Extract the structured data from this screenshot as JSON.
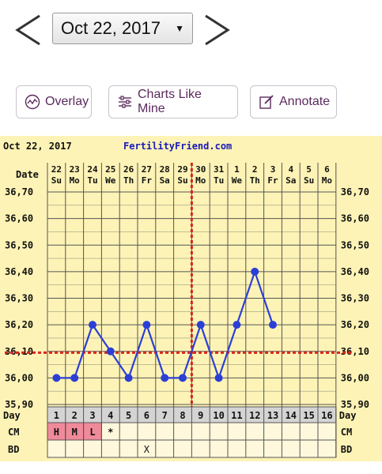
{
  "nav": {
    "selected_date": "Oct 22, 2017",
    "prev_icon": "chevron-left-icon",
    "next_icon": "chevron-right-icon",
    "dropdown_icon": "triangle-down-icon"
  },
  "toolbar": {
    "overlay_label": "Overlay",
    "charts_like_mine_label": "Charts Like Mine",
    "annotate_label": "Annotate"
  },
  "colors": {
    "chart_bg": "#fdf3b6",
    "temp_line": "#2b3fd6",
    "coverline": "#d9261c",
    "header_text": "#1a1ab8",
    "cm_fill": "#f08a9a",
    "accent": "#5a2a5c"
  },
  "chart_data": {
    "type": "line",
    "header_date": "Oct 22, 2017",
    "site": "FertilityFriend.com",
    "date_label": "Date",
    "day_label": "Day",
    "cm_label": "CM",
    "bd_label": "BD",
    "dates": [
      "22",
      "23",
      "24",
      "25",
      "26",
      "27",
      "28",
      "29",
      "30",
      "31",
      "1",
      "2",
      "3",
      "4",
      "5",
      "6"
    ],
    "weekdays": [
      "Su",
      "Mo",
      "Tu",
      "We",
      "Th",
      "Fr",
      "Sa",
      "Su",
      "Mo",
      "Tu",
      "We",
      "Th",
      "Fr",
      "Sa",
      "Su",
      "Mo"
    ],
    "cycle_days": [
      "1",
      "2",
      "3",
      "4",
      "5",
      "6",
      "7",
      "8",
      "9",
      "10",
      "11",
      "12",
      "13",
      "14",
      "15",
      "16"
    ],
    "y_ticks": [
      "36,70",
      "36,60",
      "36,50",
      "36,40",
      "36,30",
      "36,20",
      "36,10",
      "36,00",
      "35,90"
    ],
    "ylim": [
      35.9,
      36.7
    ],
    "temperatures": [
      36.0,
      36.0,
      36.2,
      36.1,
      36.0,
      36.2,
      36.0,
      36.0,
      36.2,
      36.0,
      36.2,
      36.4,
      36.2,
      null,
      null,
      null
    ],
    "coverline": 36.095,
    "ovulation_day": 8,
    "cm": [
      "H",
      "M",
      "L",
      "*",
      "",
      "",
      "",
      "",
      "",
      "",
      "",
      "",
      "",
      "",
      "",
      ""
    ],
    "bd": [
      "",
      "",
      "",
      "",
      "",
      "X",
      "",
      "",
      "",
      "",
      "",
      "",
      "",
      "",
      "",
      ""
    ],
    "grid": true
  }
}
